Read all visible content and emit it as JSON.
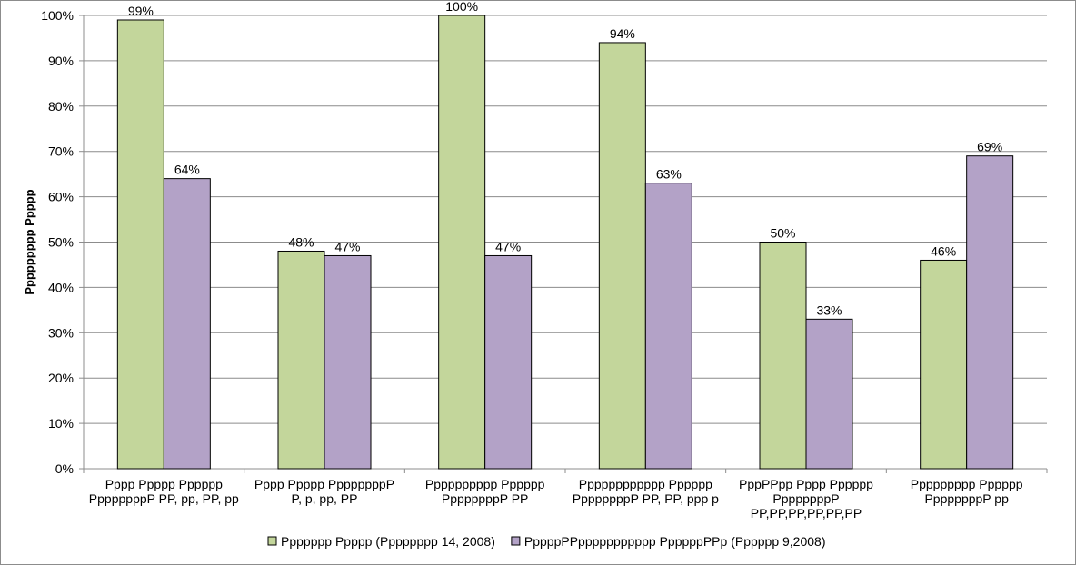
{
  "chart_data": {
    "type": "bar",
    "title": "",
    "xlabel": "",
    "ylabel": "Ppppppppp Ppppp",
    "ylim": [
      0,
      100
    ],
    "yticks": [
      "0%",
      "10%",
      "20%",
      "30%",
      "40%",
      "50%",
      "60%",
      "70%",
      "80%",
      "90%",
      "100%"
    ],
    "grid": true,
    "legend_position": "bottom",
    "categories": [
      [
        "Pppp Ppppp Pppppp",
        "PpppppppP PP, pp, PP, pp"
      ],
      [
        "Pppp Ppppp PpppppppP",
        "P, p, pp, PP"
      ],
      [
        "Pppppppppp Pppppp",
        "PpppppppP PP"
      ],
      [
        "Pppppppppppp Pppppp",
        "PpppppppP PP, PP, ppp p"
      ],
      [
        "PppPPpp Pppp Pppppp",
        "PpppppppP",
        "PP,PP,PP,PP,PP,PP"
      ],
      [
        "Ppppppppp Pppppp",
        "PpppppppP pp"
      ]
    ],
    "series": [
      {
        "name": "Ppppppp Ppppp (Pppppppp 14, 2008)",
        "color": "#c3d69b",
        "values": [
          99,
          48,
          100,
          94,
          50,
          46
        ],
        "labels": [
          "99%",
          "48%",
          "100%",
          "94%",
          "50%",
          "46%"
        ]
      },
      {
        "name": "PppppPPppppppppppp PpppppPPp (Pppppp 9,2008)",
        "color": "#b3a2c7",
        "values": [
          64,
          47,
          47,
          63,
          33,
          69
        ],
        "labels": [
          "64%",
          "47%",
          "47%",
          "63%",
          "33%",
          "69%"
        ]
      }
    ]
  }
}
